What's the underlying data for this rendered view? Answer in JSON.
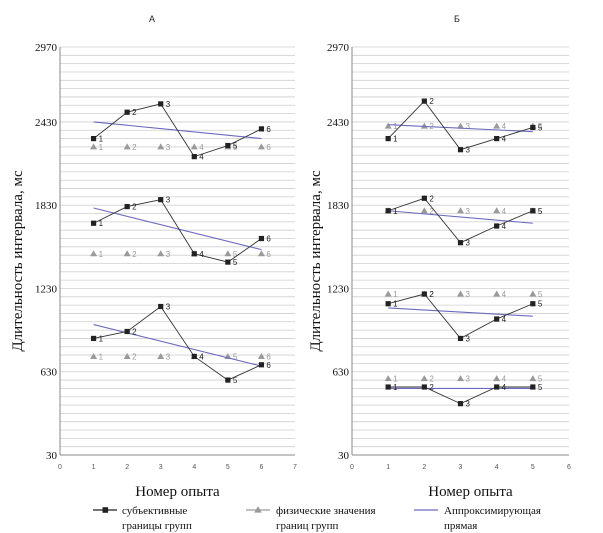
{
  "chart_data": [
    {
      "type": "line",
      "title": "А",
      "xlabel": "Номер опыта",
      "ylabel": "Длительность интервала, мс",
      "xlim": [
        0,
        7
      ],
      "ylim": [
        30,
        2970
      ],
      "x_ticks": [
        "0",
        "1",
        "2",
        "3",
        "4",
        "5",
        "6",
        "7"
      ],
      "y_ticks": [
        "30",
        "630",
        "1230",
        "1830",
        "2430",
        "2970"
      ],
      "grid": "horizontal",
      "x": [
        1,
        2,
        3,
        4,
        5,
        6
      ],
      "point_labels": [
        "1",
        "2",
        "3",
        "4",
        "5",
        "6"
      ],
      "groups": [
        {
          "subjective": [
            2310,
            2500,
            2560,
            2180,
            2260,
            2380
          ],
          "physical": [
            2250,
            2250,
            2250,
            2250,
            2250,
            2250
          ],
          "fit": [
            2430,
            2310
          ]
        },
        {
          "subjective": [
            1700,
            1820,
            1870,
            1480,
            1420,
            1590
          ],
          "physical": [
            1480,
            1480,
            1480,
            1480,
            1480,
            1480
          ],
          "fit": [
            1810,
            1510
          ]
        },
        {
          "subjective": [
            870,
            920,
            1100,
            740,
            570,
            680
          ],
          "physical": [
            740,
            740,
            740,
            740,
            740,
            740
          ],
          "fit": [
            970,
            670
          ]
        }
      ]
    },
    {
      "type": "line",
      "title": "Б",
      "xlabel": "Номер опыта",
      "ylabel": "Длительность интервала, мс",
      "xlim": [
        0,
        6
      ],
      "ylim": [
        30,
        2970
      ],
      "x_ticks": [
        "0",
        "1",
        "2",
        "3",
        "4",
        "5",
        "6"
      ],
      "y_ticks": [
        "30",
        "630",
        "1230",
        "1830",
        "2430",
        "2970"
      ],
      "grid": "horizontal",
      "x": [
        1,
        2,
        3,
        4,
        5
      ],
      "point_labels": [
        "1",
        "2",
        "3",
        "4",
        "5"
      ],
      "groups": [
        {
          "subjective": [
            2310,
            2580,
            2230,
            2310,
            2390
          ],
          "physical": [
            2400,
            2400,
            2400,
            2400,
            2400
          ],
          "fit": [
            2410,
            2360
          ]
        },
        {
          "subjective": [
            1790,
            1880,
            1560,
            1680,
            1790
          ],
          "physical": [
            1790,
            1790,
            1790,
            1790,
            1790
          ],
          "fit": [
            1790,
            1700
          ]
        },
        {
          "subjective": [
            1120,
            1190,
            870,
            1010,
            1120
          ],
          "physical": [
            1190,
            1190,
            1190,
            1190,
            1190
          ],
          "fit": [
            1090,
            1030
          ]
        },
        {
          "subjective": [
            520,
            520,
            400,
            520,
            520
          ],
          "physical": [
            580,
            580,
            580,
            580,
            580
          ],
          "fit": [
            510,
            510
          ]
        }
      ]
    }
  ],
  "legend": {
    "placement": "bottom",
    "items": [
      {
        "key": "subjective",
        "line1": "субъективные",
        "line2": "границы групп",
        "color": "#222222"
      },
      {
        "key": "physical",
        "line1": "физические значения",
        "line2": "границ групп",
        "color": "#9a9a9a"
      },
      {
        "key": "fit",
        "line1": "Аппроксимирующая",
        "line2": "прямая",
        "color": "#6a6abf"
      }
    ]
  }
}
